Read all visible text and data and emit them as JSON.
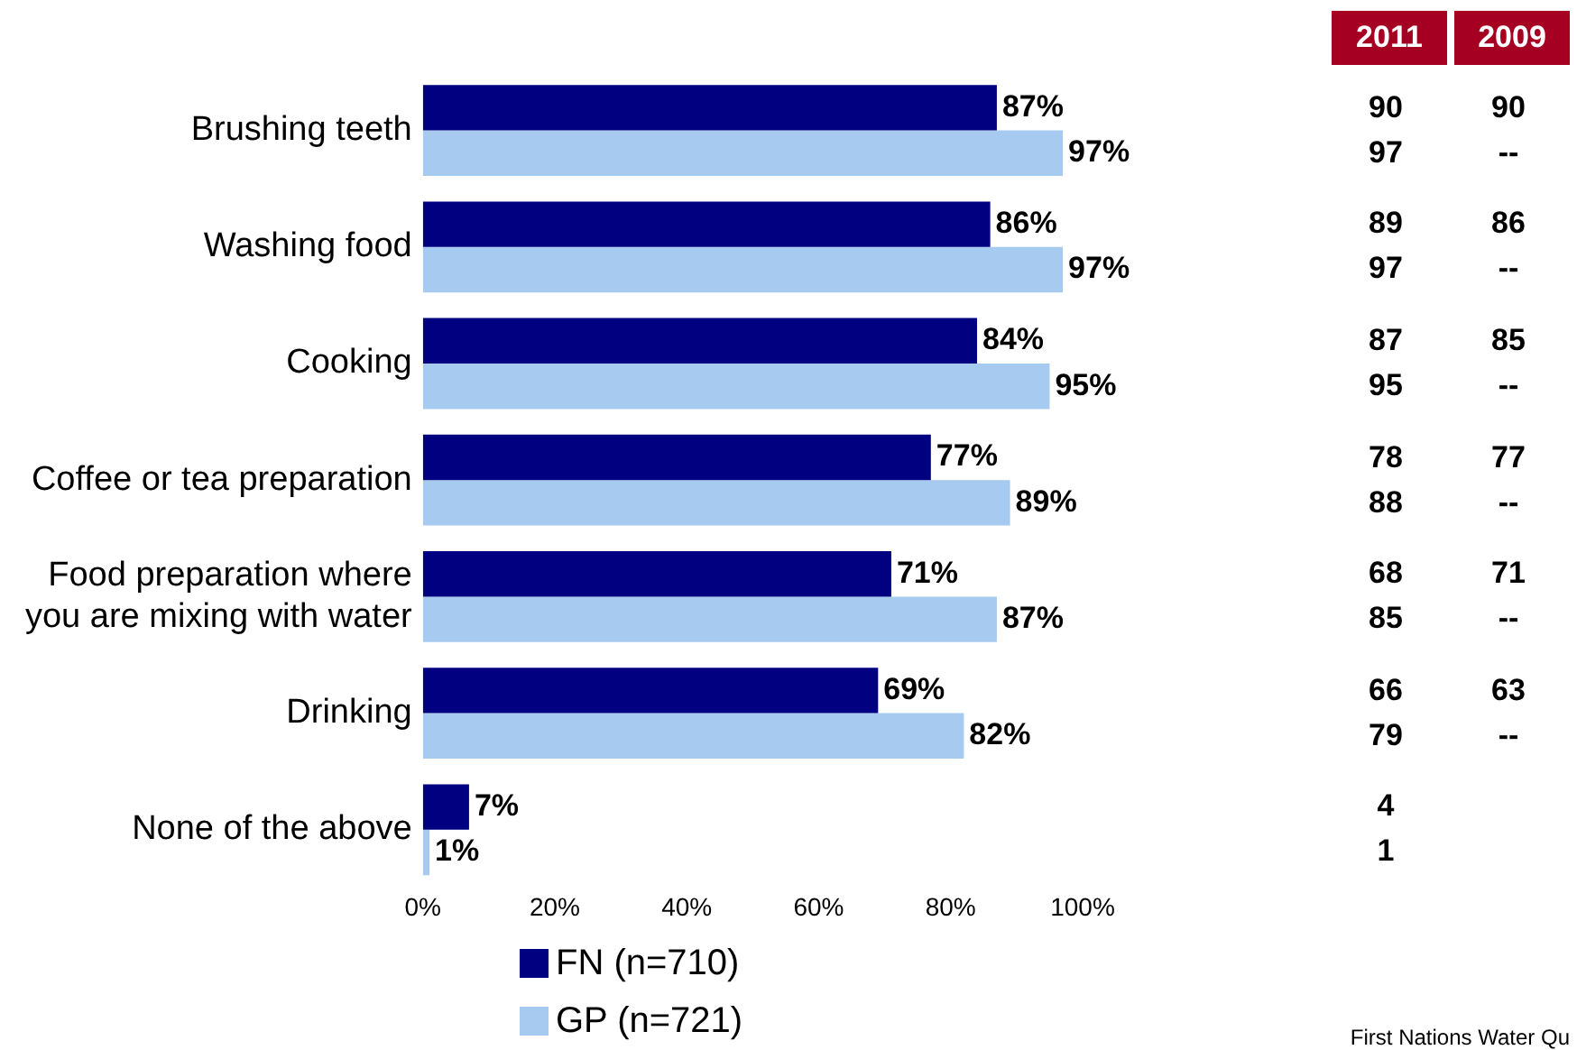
{
  "chart_data": [
    {
      "type": "bar",
      "orientation": "horizontal",
      "categories": [
        "Brushing teeth",
        "Washing food",
        "Cooking",
        "Coffee or tea preparation",
        "Food preparation where you are mixing with water",
        "Drinking",
        "None of the above"
      ],
      "series": [
        {
          "name": "FN (n=710)",
          "color": "#000080",
          "values": [
            87,
            86,
            84,
            77,
            71,
            69,
            7
          ],
          "value_labels": [
            "87%",
            "86%",
            "84%",
            "77%",
            "71%",
            "69%",
            "7%"
          ]
        },
        {
          "name": "GP (n=721)",
          "color": "#a6caf0",
          "values": [
            97,
            97,
            95,
            89,
            87,
            82,
            1
          ],
          "value_labels": [
            "97%",
            "97%",
            "95%",
            "89%",
            "87%",
            "82%",
            "1%"
          ]
        }
      ],
      "xlim": [
        0,
        100
      ],
      "xticks": [
        {
          "value": 0,
          "label": "0%"
        },
        {
          "value": 20,
          "label": "20%"
        },
        {
          "value": 40,
          "label": "40%"
        },
        {
          "value": 60,
          "label": "60%"
        },
        {
          "value": 80,
          "label": "80%"
        },
        {
          "value": 100,
          "label": "100%"
        }
      ],
      "grid": false,
      "legend": "bottom left",
      "annotations": [
        "First Nations Water Qu"
      ]
    },
    {
      "type": "other",
      "categories": [
        "2011",
        "2009"
      ],
      "cell_labels": [
        [
          "90",
          "90"
        ],
        [
          "97",
          "--"
        ],
        [
          "89",
          "86"
        ],
        [
          "97",
          "--"
        ],
        [
          "87",
          "85"
        ],
        [
          "95",
          "--"
        ],
        [
          "78",
          "77"
        ],
        [
          "88",
          "--"
        ],
        [
          "68",
          "71"
        ],
        [
          "85",
          "--"
        ],
        [
          "66",
          "63"
        ],
        [
          "79",
          "--"
        ],
        [
          "4",
          null
        ],
        [
          "1",
          null
        ]
      ]
    }
  ]
}
